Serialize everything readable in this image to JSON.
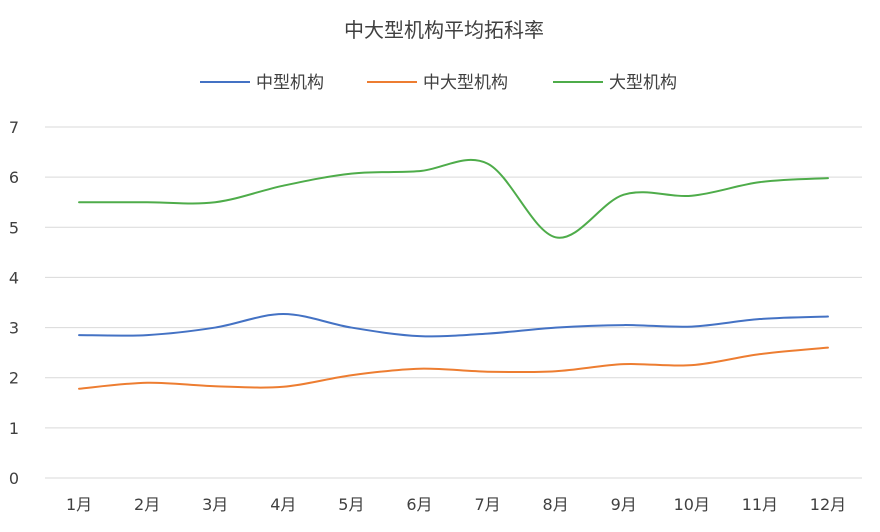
{
  "chart_data": {
    "type": "line",
    "title": "中大型机构平均拓科率",
    "xlabel": "",
    "ylabel": "",
    "categories": [
      "1月",
      "2月",
      "3月",
      "4月",
      "5月",
      "6月",
      "7月",
      "8月",
      "9月",
      "10月",
      "11月",
      "12月"
    ],
    "ylim": [
      0,
      7
    ],
    "yticks": [
      0,
      1,
      2,
      3,
      4,
      5,
      6,
      7
    ],
    "grid": true,
    "legend": "top",
    "smooth": true,
    "series": [
      {
        "name": "中型机构",
        "color": "#4472c4",
        "values": [
          2.85,
          2.85,
          3.0,
          3.27,
          3.0,
          2.83,
          2.88,
          3.0,
          3.05,
          3.02,
          3.17,
          3.22
        ]
      },
      {
        "name": "中大型机构",
        "color": "#ed7d31",
        "values": [
          1.78,
          1.9,
          1.83,
          1.82,
          2.05,
          2.18,
          2.12,
          2.13,
          2.27,
          2.25,
          2.47,
          2.6
        ]
      },
      {
        "name": "大型机构",
        "color": "#4eac4a",
        "values": [
          5.5,
          5.5,
          5.5,
          5.83,
          6.07,
          6.12,
          6.27,
          4.8,
          5.65,
          5.63,
          5.9,
          5.98
        ]
      }
    ]
  }
}
